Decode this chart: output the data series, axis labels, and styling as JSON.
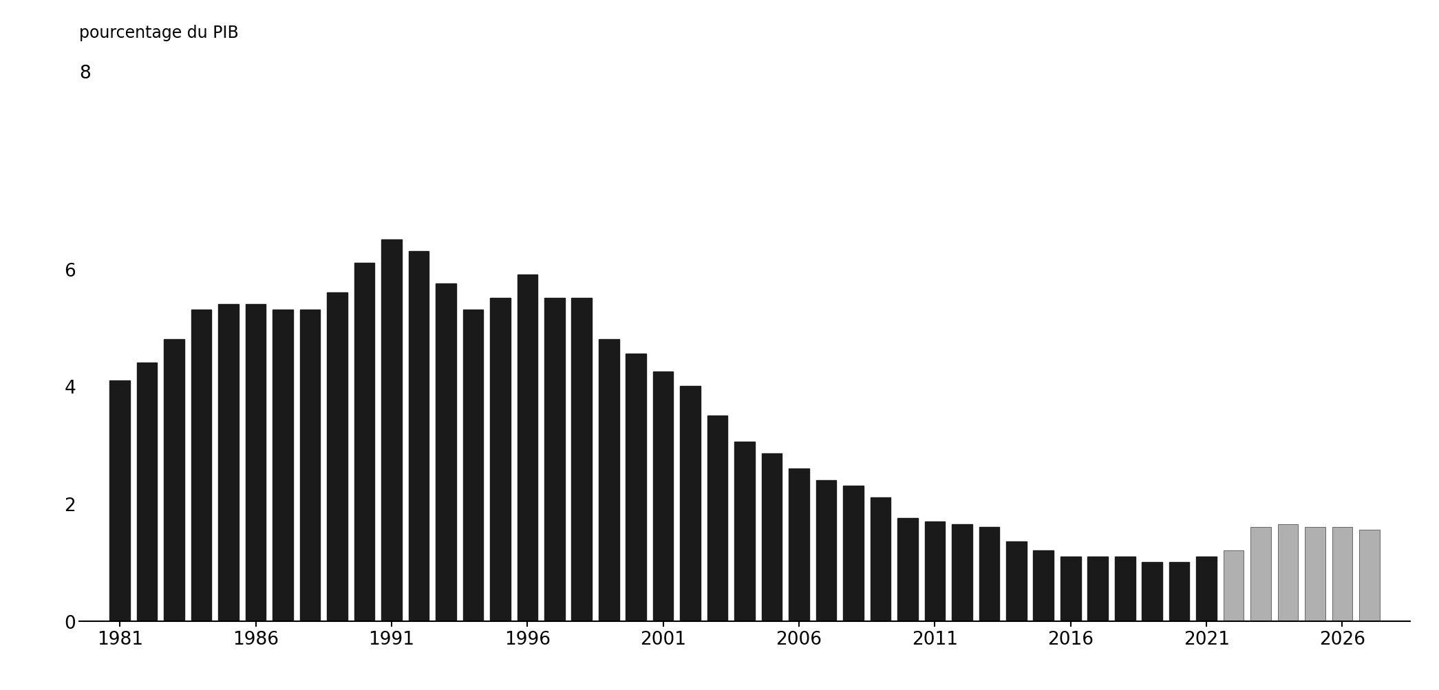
{
  "years": [
    1981,
    1982,
    1983,
    1984,
    1985,
    1986,
    1987,
    1988,
    1989,
    1990,
    1991,
    1992,
    1993,
    1994,
    1995,
    1996,
    1997,
    1998,
    1999,
    2000,
    2001,
    2002,
    2003,
    2004,
    2005,
    2006,
    2007,
    2008,
    2009,
    2010,
    2011,
    2012,
    2013,
    2014,
    2015,
    2016,
    2017,
    2018,
    2019,
    2020,
    2021,
    2022,
    2023,
    2024,
    2025,
    2026,
    2027
  ],
  "values": [
    4.1,
    4.4,
    4.8,
    5.3,
    5.4,
    5.4,
    5.3,
    5.3,
    5.6,
    6.1,
    6.5,
    6.3,
    5.75,
    5.3,
    5.5,
    5.9,
    5.5,
    5.5,
    4.8,
    4.55,
    4.25,
    4.0,
    3.5,
    3.05,
    2.85,
    2.6,
    2.4,
    2.3,
    2.1,
    1.75,
    1.7,
    1.65,
    1.6,
    1.35,
    1.2,
    1.1,
    1.1,
    1.1,
    1.0,
    1.0,
    1.1,
    1.2,
    1.6,
    1.65,
    1.6,
    1.6,
    1.55
  ],
  "forecast_start_year": 2022,
  "historical_color": "#1a1a1a",
  "forecast_color": "#b0b0b0",
  "ylabel": "pourcentage du PIB",
  "y8_label": "8",
  "ylim": [
    0,
    8
  ],
  "yticks": [
    0,
    2,
    4,
    6
  ],
  "background_color": "#ffffff",
  "xlabel_ticks": [
    1981,
    1986,
    1991,
    1996,
    2001,
    2006,
    2011,
    2016,
    2021,
    2026
  ]
}
